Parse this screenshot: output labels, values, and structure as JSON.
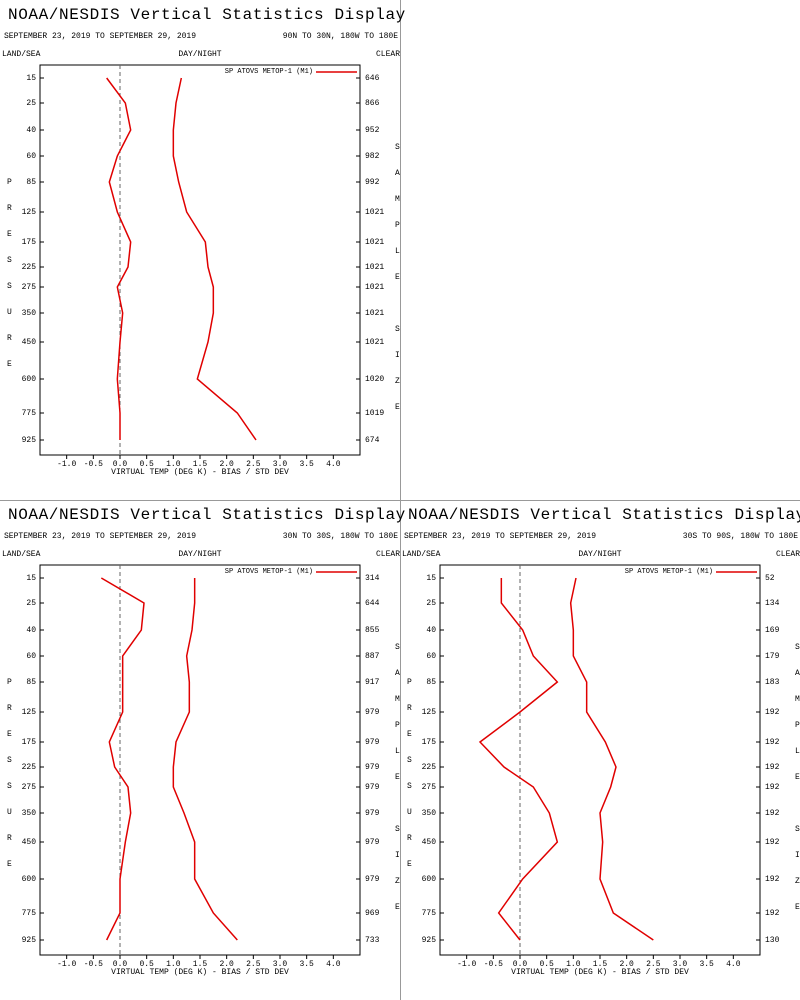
{
  "chart_data": [
    {
      "type": "line",
      "title": "NOAA/NESDIS Vertical Statistics Display",
      "subtitle": "SEPTEMBER 23, 2019 TO SEPTEMBER 29, 2019",
      "region": "90N TO 30N, 180W TO 180E",
      "land_sea": "LAND/SEA",
      "day_night": "DAY/NIGHT",
      "clear": "CLEAR",
      "y_label": "PRESSURE",
      "y2_label": "SAMPLE SIZE",
      "x_label": "VIRTUAL TEMP (DEG K) - BIAS / STD DEV",
      "categories": [
        15,
        25,
        40,
        60,
        85,
        125,
        175,
        225,
        275,
        350,
        450,
        600,
        775,
        925
      ],
      "sample_sizes": [
        646,
        866,
        952,
        982,
        992,
        1021,
        1021,
        1021,
        1021,
        1021,
        1021,
        1020,
        1019,
        674
      ],
      "series": [
        {
          "name": "SP ATOVS METOP-1 (M1)",
          "color": "#e00000",
          "bias": [
            -0.25,
            0.1,
            0.2,
            -0.05,
            -0.2,
            -0.05,
            0.2,
            0.15,
            -0.05,
            0.05,
            0.0,
            -0.05,
            0.0,
            -0.0
          ],
          "std_dev": [
            1.15,
            1.05,
            1.0,
            1.0,
            1.1,
            1.25,
            1.6,
            1.65,
            1.75,
            1.75,
            1.65,
            1.45,
            2.2,
            2.55
          ]
        }
      ],
      "xlim": [
        -1.5,
        4.5
      ],
      "xticks": [
        {
          "value": -1,
          "label": "-1.0"
        },
        -0.5,
        {
          "value": 0,
          "label": "0.0"
        },
        0.5,
        {
          "value": 1,
          "label": "1.0"
        },
        1.5,
        {
          "value": 2,
          "label": "2.0"
        },
        2.5,
        {
          "value": 3,
          "label": "3.0"
        },
        3.5,
        {
          "value": 4,
          "label": "4.0"
        }
      ]
    },
    {
      "type": "line",
      "title": "NOAA/NESDIS Vertical Statistics Display",
      "subtitle": "SEPTEMBER 23, 2019 TO SEPTEMBER 29, 2019",
      "region": "30N TO 30S, 180W TO 180E",
      "land_sea": "LAND/SEA",
      "day_night": "DAY/NIGHT",
      "clear": "CLEAR",
      "y_label": "PRESSURE",
      "y2_label": "SAMPLE SIZE",
      "x_label": "VIRTUAL TEMP (DEG K) - BIAS / STD DEV",
      "categories": [
        15,
        25,
        40,
        60,
        85,
        125,
        175,
        225,
        275,
        350,
        450,
        600,
        775,
        925
      ],
      "sample_sizes": [
        314,
        644,
        855,
        887,
        917,
        979,
        979,
        979,
        979,
        979,
        979,
        979,
        969,
        733
      ],
      "series": [
        {
          "name": "SP ATOVS METOP-1 (M1)",
          "color": "#e00000",
          "bias": [
            -0.35,
            0.45,
            0.4,
            0.05,
            0.05,
            0.05,
            -0.2,
            -0.1,
            0.15,
            0.2,
            0.1,
            0.0,
            0.0,
            -0.25
          ],
          "std_dev": [
            1.4,
            1.4,
            1.35,
            1.25,
            1.3,
            1.3,
            1.05,
            1.0,
            1.0,
            1.2,
            1.4,
            1.4,
            1.75,
            2.2
          ]
        }
      ],
      "xlim": [
        -1.5,
        4.5
      ],
      "xticks": [
        {
          "value": -1,
          "label": "-1.0"
        },
        -0.5,
        {
          "value": 0,
          "label": "0.0"
        },
        0.5,
        {
          "value": 1,
          "label": "1.0"
        },
        1.5,
        {
          "value": 2,
          "label": "2.0"
        },
        2.5,
        {
          "value": 3,
          "label": "3.0"
        },
        3.5,
        {
          "value": 4,
          "label": "4.0"
        }
      ]
    },
    {
      "type": "line",
      "title": "NOAA/NESDIS Vertical Statistics Display",
      "subtitle": "SEPTEMBER 23, 2019 TO SEPTEMBER 29, 2019",
      "region": "30S TO 90S, 180W TO 180E",
      "land_sea": "LAND/SEA",
      "day_night": "DAY/NIGHT",
      "clear": "CLEAR",
      "y_label": "PRESSURE",
      "y2_label": "SAMPLE SIZE",
      "x_label": "VIRTUAL TEMP (DEG K) - BIAS / STD DEV",
      "categories": [
        15,
        25,
        40,
        60,
        85,
        125,
        175,
        225,
        275,
        350,
        450,
        600,
        775,
        925
      ],
      "sample_sizes": [
        52,
        134,
        169,
        179,
        183,
        192,
        192,
        192,
        192,
        192,
        192,
        192,
        192,
        130
      ],
      "series": [
        {
          "name": "SP ATOVS METOP-1 (M1)",
          "color": "#e00000",
          "bias": [
            -0.35,
            -0.35,
            0.05,
            0.25,
            0.7,
            0.0,
            -0.75,
            -0.3,
            0.25,
            0.55,
            0.7,
            0.05,
            -0.4,
            0.0
          ],
          "std_dev": [
            1.05,
            0.95,
            1.0,
            1.0,
            1.25,
            1.25,
            1.6,
            1.8,
            1.7,
            1.5,
            1.55,
            1.5,
            1.75,
            2.5
          ]
        }
      ],
      "xlim": [
        -1.5,
        4.5
      ],
      "xticks": [
        {
          "value": -1,
          "label": "-1.0"
        },
        -0.5,
        {
          "value": 0,
          "label": "0.0"
        },
        0.5,
        {
          "value": 1,
          "label": "1.0"
        },
        1.5,
        {
          "value": 2,
          "label": "2.0"
        },
        2.5,
        {
          "value": 3,
          "label": "3.0"
        },
        3.5,
        {
          "value": 4,
          "label": "4.0"
        }
      ]
    }
  ]
}
